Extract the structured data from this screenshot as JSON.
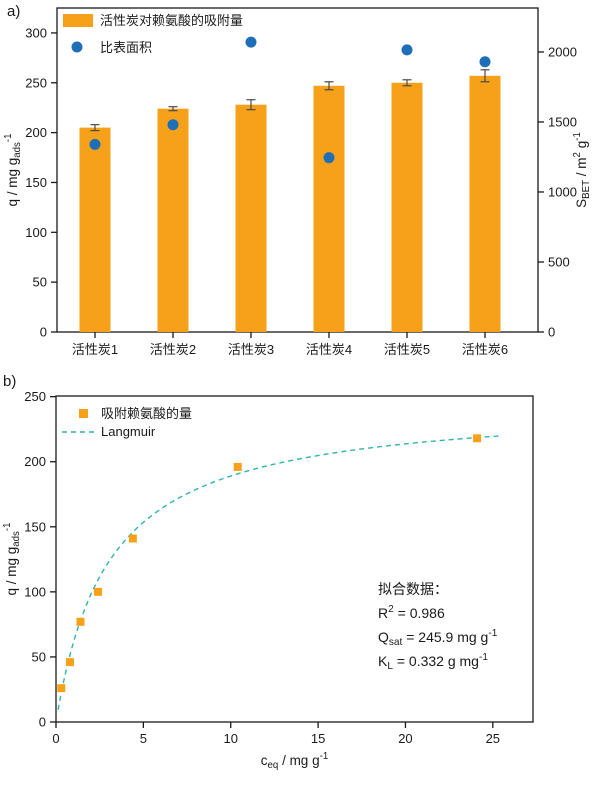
{
  "page": {
    "background": "#ffffff",
    "axis_color": "#1a1a1a",
    "error_bar_color": "#4a4a4a"
  },
  "chart_data": [
    {
      "id": "a",
      "type": "bar",
      "panel_label": "a)",
      "grid": false,
      "legend_position": "top-left",
      "categories": [
        "活性炭1",
        "活性炭2",
        "活性炭3",
        "活性炭4",
        "活性炭5",
        "活性炭6"
      ],
      "series": [
        {
          "name": "活性炭对赖氨酸的吸附量",
          "type": "bar",
          "axis": "left",
          "color": "#F7A11A",
          "values": [
            205,
            224,
            228,
            247,
            250,
            257
          ],
          "errors": [
            3,
            2,
            5,
            4,
            3,
            6
          ]
        },
        {
          "name": "比表面积",
          "type": "scatter",
          "marker": "circle",
          "axis": "right",
          "color": "#1E6FB8",
          "values": [
            1340,
            1480,
            2070,
            1245,
            2015,
            1930
          ]
        }
      ],
      "left_axis": {
        "label_parts": [
          {
            "t": "q / mg g"
          },
          {
            "t": "ads",
            "sub": true
          },
          {
            "t": "-1",
            "sup": true
          }
        ],
        "ticks": [
          0,
          50,
          100,
          150,
          200,
          250,
          300
        ],
        "min": 0,
        "max": 325
      },
      "right_axis": {
        "label_parts": [
          {
            "t": "S"
          },
          {
            "t": "BET",
            "sub": true
          },
          {
            "t": " / m"
          },
          {
            "t": "2",
            "sup": true
          },
          {
            "t": " g"
          },
          {
            "t": "-1",
            "sup": true
          }
        ],
        "ticks": [
          0,
          500,
          1000,
          1500,
          2000
        ],
        "min": 0,
        "max": 2314
      }
    },
    {
      "id": "b",
      "type": "scatter",
      "panel_label": "b)",
      "grid": false,
      "legend_position": "top-left",
      "series": [
        {
          "name": "吸附赖氨酸的量",
          "type": "scatter",
          "marker": "square",
          "color": "#F7A11A",
          "x": [
            0.3,
            0.8,
            1.4,
            2.4,
            4.4,
            10.4,
            24.1
          ],
          "y": [
            26,
            46,
            77,
            100,
            141,
            196,
            218
          ]
        },
        {
          "name": "Langmuir",
          "type": "line",
          "style": "dashed",
          "color": "#2FB4A9",
          "fit_model": "Langmuir",
          "Qsat": 245.9,
          "KL": 0.332,
          "x_range": [
            0.12,
            25.4
          ]
        }
      ],
      "x_axis": {
        "label_parts": [
          {
            "t": "c"
          },
          {
            "t": "eq",
            "sub": true
          },
          {
            "t": " / mg g"
          },
          {
            "t": "-1",
            "sup": true
          }
        ],
        "ticks": [
          0,
          5,
          10,
          15,
          20,
          25
        ],
        "min": 0,
        "max": 27.3
      },
      "y_axis": {
        "label_parts": [
          {
            "t": "q / mg g"
          },
          {
            "t": "ads",
            "sub": true
          },
          {
            "t": "-1",
            "sup": true
          }
        ],
        "ticks": [
          0,
          50,
          100,
          150,
          200,
          250
        ],
        "min": 0,
        "max": 250.5
      },
      "annotation": {
        "title": "拟合数据：",
        "lines_parts": [
          [
            {
              "t": "R"
            },
            {
              "t": "2",
              "sup": true
            },
            {
              "t": " = 0.986"
            }
          ],
          [
            {
              "t": "Q"
            },
            {
              "t": "sat",
              "sub": true
            },
            {
              "t": " = 245.9 mg g"
            },
            {
              "t": "-1",
              "sup": true
            }
          ],
          [
            {
              "t": "K"
            },
            {
              "t": "L",
              "sub": true
            },
            {
              "t": " = 0.332 g mg"
            },
            {
              "t": "-1",
              "sup": true
            }
          ]
        ]
      }
    }
  ]
}
